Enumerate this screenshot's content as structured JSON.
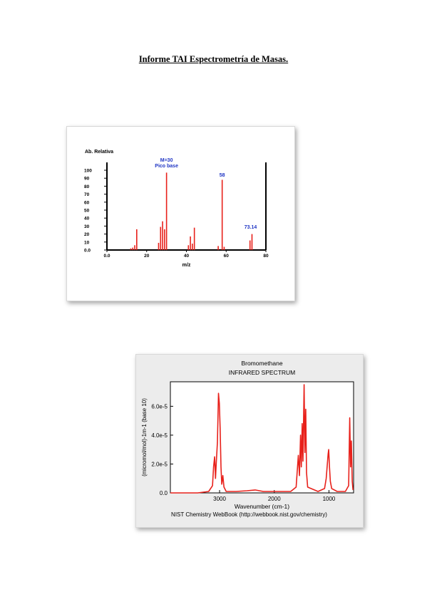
{
  "document": {
    "title": "Informe TAI Espectrometría de Masas."
  },
  "chart_data": [
    {
      "type": "bar",
      "ylabel": "Ab. Relativa",
      "xlabel": "m/z",
      "xlim": [
        0,
        80
      ],
      "ylim": [
        0,
        100
      ],
      "x_ticks": [
        "0.0",
        "20",
        "40",
        "60",
        "80"
      ],
      "y_ticks": [
        "100",
        "90",
        "80",
        "70",
        "60",
        "50",
        "40",
        "30",
        "20",
        "10",
        "0.0"
      ],
      "peaks": [
        {
          "x": 12,
          "y": 2
        },
        {
          "x": 13,
          "y": 3
        },
        {
          "x": 14,
          "y": 6
        },
        {
          "x": 15,
          "y": 26
        },
        {
          "x": 26,
          "y": 9
        },
        {
          "x": 27,
          "y": 29
        },
        {
          "x": 28,
          "y": 36
        },
        {
          "x": 29,
          "y": 26
        },
        {
          "x": 30,
          "y": 97
        },
        {
          "x": 41,
          "y": 6
        },
        {
          "x": 42,
          "y": 17
        },
        {
          "x": 43,
          "y": 8
        },
        {
          "x": 44,
          "y": 28
        },
        {
          "x": 56,
          "y": 5
        },
        {
          "x": 58,
          "y": 88
        },
        {
          "x": 59,
          "y": 4
        },
        {
          "x": 72,
          "y": 12
        },
        {
          "x": 73,
          "y": 20
        }
      ],
      "annotations": [
        {
          "text": "M=30",
          "x": 30
        },
        {
          "text": "Pico base",
          "x": 30
        },
        {
          "text": "58",
          "x": 58
        },
        {
          "text": "73.14",
          "x": 73
        }
      ],
      "color": "#e8211b",
      "annotation_color": "#1f35c4"
    },
    {
      "type": "line",
      "title": "Bromomethane",
      "subtitle": "INFRARED SPECTRUM",
      "xlabel": "Wavenumber (cm-1)",
      "ylabel": "(micromol/mol)-1m-1 (base 10)",
      "xlim": [
        3900,
        550
      ],
      "ylim": [
        0,
        7.5e-05
      ],
      "x_ticks": [
        "3000",
        "2000",
        "1000"
      ],
      "y_ticks": [
        "0.0",
        "2.0e-5",
        "4.0e-5",
        "6.0e-5"
      ],
      "source": "NIST Chemistry WebBook (http://webbook.nist.gov/chemistry)",
      "series": [
        {
          "points": [
            [
              3900,
              0
            ],
            [
              3400,
              0
            ],
            [
              3200,
              1e-06
            ],
            [
              3130,
              5e-06
            ],
            [
              3110,
              1.8e-05
            ],
            [
              3090,
              2.5e-05
            ],
            [
              3075,
              1e-05
            ],
            [
              3060,
              2.1e-05
            ],
            [
              3040,
              3.5e-05
            ],
            [
              3020,
              6.9e-05
            ],
            [
              3005,
              6.2e-05
            ],
            [
              2990,
              4.5e-05
            ],
            [
              2975,
              1.8e-05
            ],
            [
              2960,
              6e-06
            ],
            [
              2940,
              1.2e-05
            ],
            [
              2920,
              4e-06
            ],
            [
              2880,
              1e-06
            ],
            [
              2700,
              1e-06
            ],
            [
              2500,
              1.5e-06
            ],
            [
              2350,
              2e-06
            ],
            [
              2200,
              1e-06
            ],
            [
              1700,
              1e-06
            ],
            [
              1600,
              4e-06
            ],
            [
              1560,
              2.6e-05
            ],
            [
              1540,
              1.2e-05
            ],
            [
              1520,
              4e-05
            ],
            [
              1505,
              1.8e-05
            ],
            [
              1490,
              4.8e-05
            ],
            [
              1475,
              2.2e-05
            ],
            [
              1455,
              7.5e-05
            ],
            [
              1440,
              2.8e-05
            ],
            [
              1425,
              5.8e-05
            ],
            [
              1410,
              1.4e-05
            ],
            [
              1390,
              4e-06
            ],
            [
              1200,
              1e-06
            ],
            [
              1080,
              3e-06
            ],
            [
              1050,
              1e-05
            ],
            [
              1030,
              2e-05
            ],
            [
              1015,
              2.7e-05
            ],
            [
              1005,
              3e-05
            ],
            [
              990,
              1.8e-05
            ],
            [
              975,
              8e-06
            ],
            [
              950,
              3e-06
            ],
            [
              850,
              1e-06
            ],
            [
              700,
              1e-06
            ],
            [
              640,
              5e-06
            ],
            [
              620,
              5.2e-05
            ],
            [
              605,
              1.8e-05
            ],
            [
              590,
              3.6e-05
            ],
            [
              575,
              8e-06
            ],
            [
              560,
              2e-06
            ]
          ],
          "color": "#e8211b"
        }
      ],
      "grid": false
    }
  ]
}
